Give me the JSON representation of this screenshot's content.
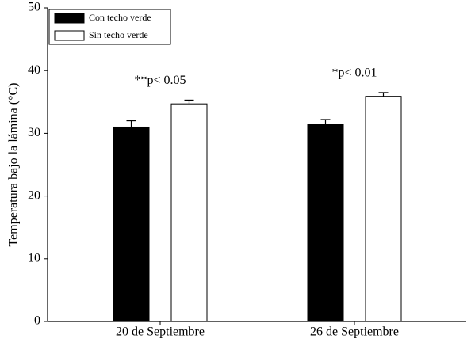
{
  "chart_data": {
    "type": "bar",
    "y_label": "Temperatura bajo la lámina (°C)",
    "categories": [
      "20 de Septiembre",
      "26 de Septiembre"
    ],
    "series": [
      {
        "name": "Con techo verde",
        "color": "#000000",
        "values": [
          31.0,
          31.5
        ],
        "errors": [
          1.0,
          0.7
        ]
      },
      {
        "name": "Sin techo verde",
        "color": "#ffffff",
        "values": [
          34.7,
          35.9
        ],
        "errors": [
          0.6,
          0.6
        ]
      }
    ],
    "annotations": [
      "**p< 0.05",
      "*p< 0.01"
    ],
    "ylim": [
      0,
      50
    ],
    "yticks": [
      0,
      10,
      20,
      30,
      40,
      50
    ],
    "legend": "upper left"
  }
}
